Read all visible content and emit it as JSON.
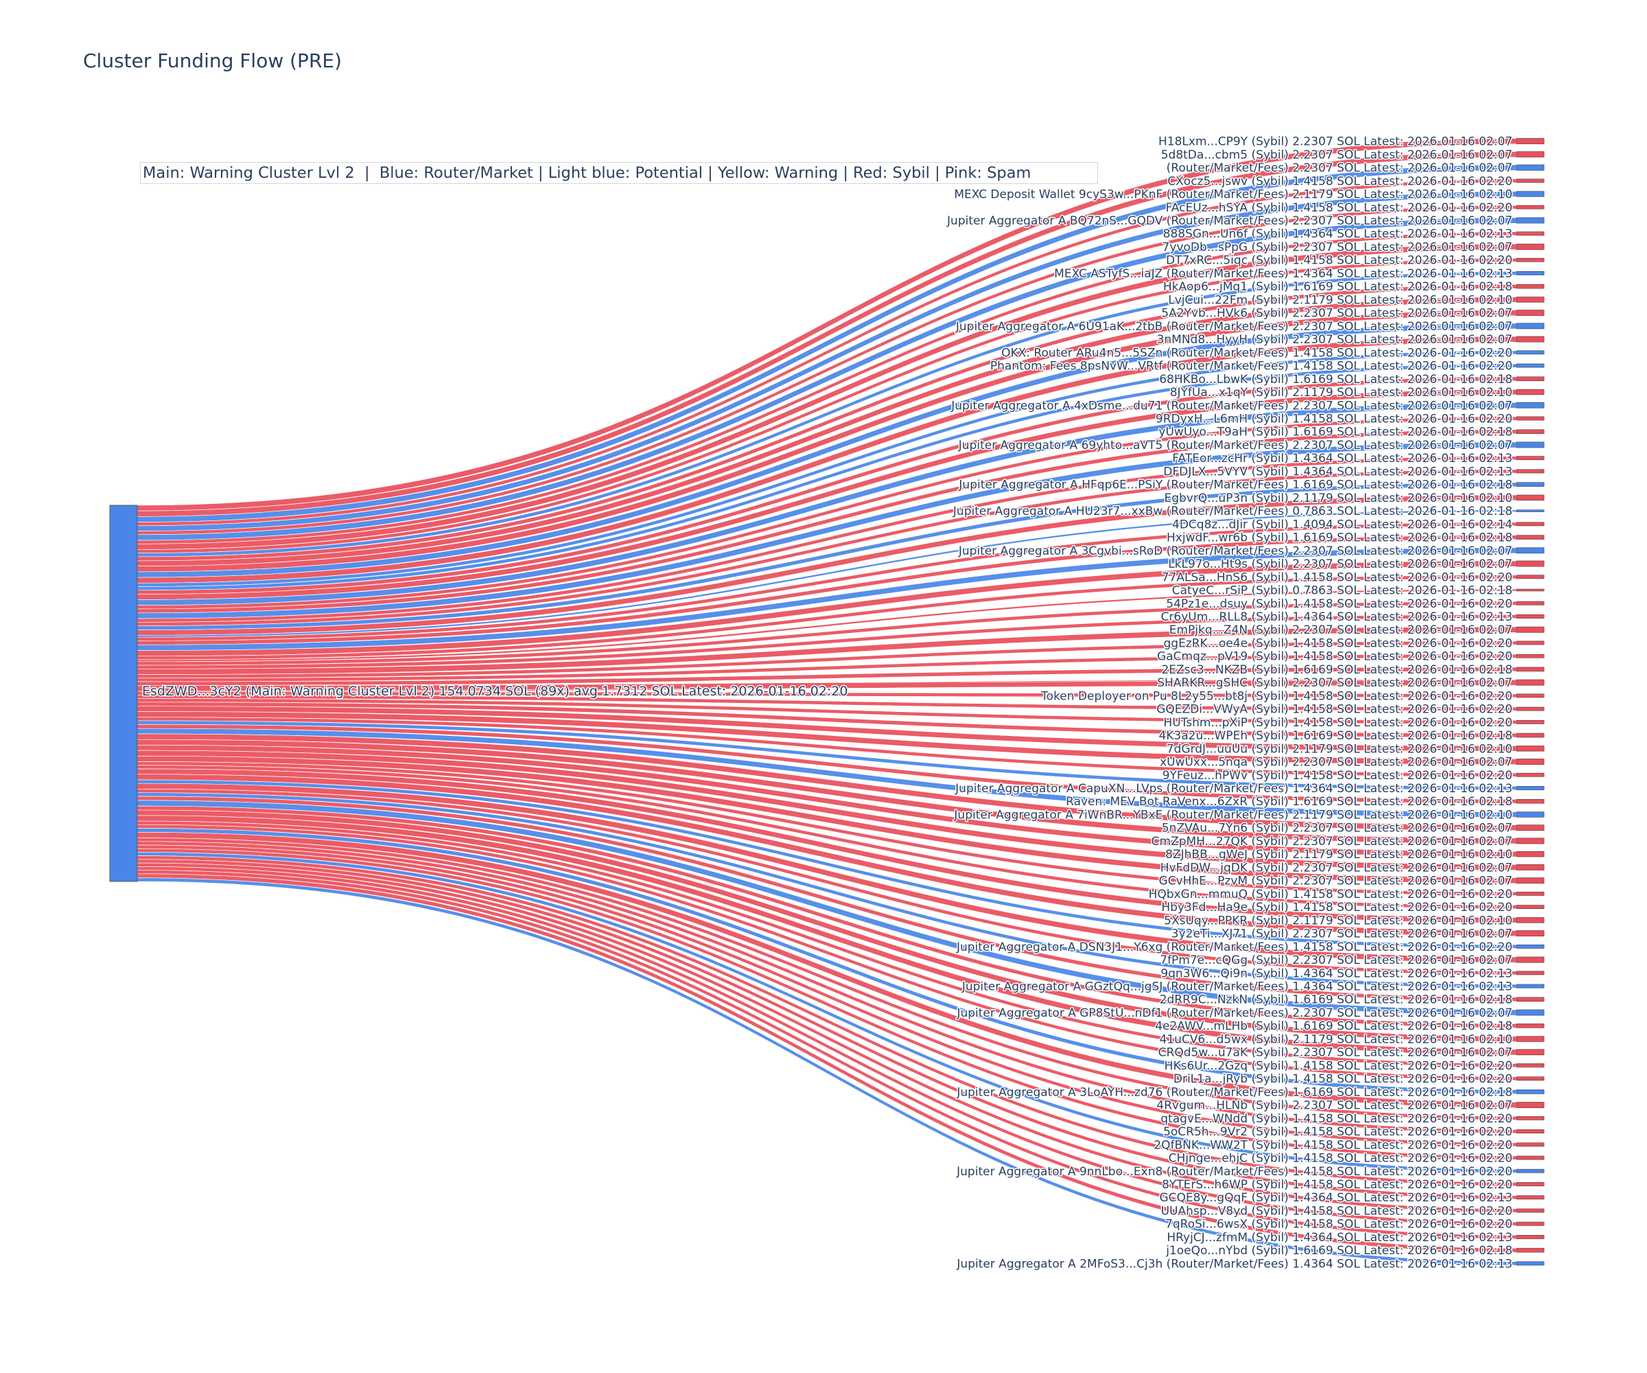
{
  "title": "Cluster Funding Flow (PRE)",
  "legend_text": "Main: Warning Cluster Lvl 2  |  Blue: Router/Market | Light blue: Potential | Yellow: Warning | Red: Sybil | Pink: Spam",
  "colors": {
    "main": "#4a86e8",
    "router": "#4a86e8",
    "sybil": "#e8505b",
    "text": "#2a3f5f"
  },
  "chart_data": {
    "type": "sankey",
    "source": {
      "label": "EsdZWD...3cY2 (Main: Warning Cluster Lvl 2) 154.0734 SOL (89x) avg 1.7312 SOL Latest: 2026-01-16 02:20",
      "total_sol": 154.0734,
      "count": 89
    },
    "targets": [
      {
        "label": "H18Lxm...CP9Y (Sybil) 2.2307 SOL Latest: 2026-01-16 02:07",
        "kind": "sybil",
        "value": 2.2307
      },
      {
        "label": "5d8tDa...cbm5 (Sybil) 2.2307 SOL Latest: 2026-01-16 02:07",
        "kind": "sybil",
        "value": 2.2307
      },
      {
        "label": "(Router/Market/Fees) 2.2307 SOL Latest: 2026-01-16 02:07",
        "kind": "router",
        "value": 2.2307
      },
      {
        "label": "CXocz5...jswv (Sybil) 1.4158 SOL Latest: 2026-01-16 02:20",
        "kind": "sybil",
        "value": 1.4158
      },
      {
        "label": "MEXC Deposit Wallet 9cyS3w...PKnF (Router/Market/Fees) 2.1179 SOL Latest: 2026-01-16 02:10",
        "kind": "router",
        "value": 2.1179
      },
      {
        "label": "FAcEUz...hSYA (Sybil) 1.4158 SOL Latest: 2026-01-16 02:20",
        "kind": "sybil",
        "value": 1.4158
      },
      {
        "label": "Jupiter Aggregator A BQ72nS...GQDV (Router/Market/Fees) 2.2307 SOL Latest: 2026-01-16 02:07",
        "kind": "router",
        "value": 2.2307
      },
      {
        "label": "888SGn...Un6f (Sybil) 1.4364 SOL Latest: 2026-01-16 02:13",
        "kind": "sybil",
        "value": 1.4364
      },
      {
        "label": "7yvoDb...sPpG (Sybil) 2.2307 SOL Latest: 2026-01-16 02:07",
        "kind": "sybil",
        "value": 2.2307
      },
      {
        "label": "DT7xRC...5iqc (Sybil) 1.4158 SOL Latest: 2026-01-16 02:20",
        "kind": "sybil",
        "value": 1.4158
      },
      {
        "label": "MEXC ASTyfS...iaJZ (Router/Market/Fees) 1.4364 SOL Latest: 2026-01-16 02:13",
        "kind": "router",
        "value": 1.4364
      },
      {
        "label": "HkAop6...jMq1 (Sybil) 1.6169 SOL Latest: 2026-01-16 02:18",
        "kind": "sybil",
        "value": 1.6169
      },
      {
        "label": "LvjCui...22Fm (Sybil) 2.1179 SOL Latest: 2026-01-16 02:10",
        "kind": "sybil",
        "value": 2.1179
      },
      {
        "label": "5A2Yvb...HVk6 (Sybil) 2.2307 SOL Latest: 2026-01-16 02:07",
        "kind": "sybil",
        "value": 2.2307
      },
      {
        "label": "Jupiter Aggregator A 6U91aK...2tbB (Router/Market/Fees) 2.2307 SOL Latest: 2026-01-16 02:07",
        "kind": "router",
        "value": 2.2307
      },
      {
        "label": "3nMNd8...HyyH (Sybil) 2.2307 SOL Latest: 2026-01-16 02:07",
        "kind": "sybil",
        "value": 2.2307
      },
      {
        "label": "OKX: Router ARu4n5...5SZn (Router/Market/Fees) 1.4158 SOL Latest: 2026-01-16 02:20",
        "kind": "router",
        "value": 1.4158
      },
      {
        "label": "Phantom: Fees 8psNvW...VRtf (Router/Market/Fees) 1.4158 SOL Latest: 2026-01-16 02:20",
        "kind": "router",
        "value": 1.4158
      },
      {
        "label": "68HKBo...LbwK (Sybil) 1.6169 SOL Latest: 2026-01-16 02:18",
        "kind": "sybil",
        "value": 1.6169
      },
      {
        "label": "8JYfUa...x1qY (Sybil) 2.1179 SOL Latest: 2026-01-16 02:10",
        "kind": "sybil",
        "value": 2.1179
      },
      {
        "label": "Jupiter Aggregator A 4xDsme...du71 (Router/Market/Fees) 2.2307 SOL Latest: 2026-01-16 02:07",
        "kind": "router",
        "value": 2.2307
      },
      {
        "label": "9RDyxH...L6mH (Sybil) 1.4158 SOL Latest: 2026-01-16 02:20",
        "kind": "sybil",
        "value": 1.4158
      },
      {
        "label": "yUwUyo...T9aH (Sybil) 1.6169 SOL Latest: 2026-01-16 02:18",
        "kind": "sybil",
        "value": 1.6169
      },
      {
        "label": "Jupiter Aggregator A 69yhto...aVT5 (Router/Market/Fees) 2.2307 SOL Latest: 2026-01-16 02:07",
        "kind": "router",
        "value": 2.2307
      },
      {
        "label": "FATEor...zcHr (Sybil) 1.4364 SOL Latest: 2026-01-16 02:13",
        "kind": "sybil",
        "value": 1.4364
      },
      {
        "label": "DFDJLX...5VYV (Sybil) 1.4364 SOL Latest: 2026-01-16 02:13",
        "kind": "sybil",
        "value": 1.4364
      },
      {
        "label": "Jupiter Aggregator A HFqp6E...PSiY (Router/Market/Fees) 1.6169 SOL Latest: 2026-01-16 02:18",
        "kind": "router",
        "value": 1.6169
      },
      {
        "label": "EgbvrQ...uP3n (Sybil) 2.1179 SOL Latest: 2026-01-16 02:10",
        "kind": "sybil",
        "value": 2.1179
      },
      {
        "label": "Jupiter Aggregator A HU23r7...xxBw (Router/Market/Fees) 0.7863 SOL Latest: 2026-01-16 02:18",
        "kind": "router",
        "value": 0.7863
      },
      {
        "label": "4DCq8z...dJir (Sybil) 1.4094 SOL Latest: 2026-01-16 02:14",
        "kind": "sybil",
        "value": 1.4094
      },
      {
        "label": "HxjwdF...wr6b (Sybil) 1.6169 SOL Latest: 2026-01-16 02:18",
        "kind": "sybil",
        "value": 1.6169
      },
      {
        "label": "Jupiter Aggregator A 3Cgvbi...sRoD (Router/Market/Fees) 2.2307 SOL Latest: 2026-01-16 02:07",
        "kind": "router",
        "value": 2.2307
      },
      {
        "label": "LkL97o...Ht9s (Sybil) 2.2307 SOL Latest: 2026-01-16 02:07",
        "kind": "sybil",
        "value": 2.2307
      },
      {
        "label": "77ALSa...HnS6 (Sybil) 1.4158 SOL Latest: 2026-01-16 02:20",
        "kind": "sybil",
        "value": 1.4158
      },
      {
        "label": "CatyeC...rSiP (Sybil) 0.7863 SOL Latest: 2026-01-16 02:18",
        "kind": "sybil",
        "value": 0.7863
      },
      {
        "label": "54Pz1e...dsuy (Sybil) 1.4158 SOL Latest: 2026-01-16 02:20",
        "kind": "sybil",
        "value": 1.4158
      },
      {
        "label": "Cr6yUm...RLL8 (Sybil) 1.4364 SOL Latest: 2026-01-16 02:13",
        "kind": "sybil",
        "value": 1.4364
      },
      {
        "label": "EmPjkq...Z4N (Sybil) 2.2307 SOL Latest: 2026-01-16 02:07",
        "kind": "sybil",
        "value": 2.2307
      },
      {
        "label": "ggEzRK...oe4e (Sybil) 1.4158 SOL Latest: 2026-01-16 02:20",
        "kind": "sybil",
        "value": 1.4158
      },
      {
        "label": "GaCmqz...pV19 (Sybil) 1.4158 SOL Latest: 2026-01-16 02:20",
        "kind": "sybil",
        "value": 1.4158
      },
      {
        "label": "2EZsc3...NKZB (Sybil) 1.6169 SOL Latest: 2026-01-16 02:18",
        "kind": "sybil",
        "value": 1.6169
      },
      {
        "label": "SHARKR...gSHC (Sybil) 2.2307 SOL Latest: 2026-01-16 02:07",
        "kind": "sybil",
        "value": 2.2307
      },
      {
        "label": "Token Deployer on Pu 8L2y55...bt8j (Sybil) 1.4158 SOL Latest: 2026-01-16 02:20",
        "kind": "sybil",
        "value": 1.4158
      },
      {
        "label": "GQEZDi...VWyA (Sybil) 1.4158 SOL Latest: 2026-01-16 02:20",
        "kind": "sybil",
        "value": 1.4158
      },
      {
        "label": "HUTshm...pXiP (Sybil) 1.4158 SOL Latest: 2026-01-16 02:20",
        "kind": "sybil",
        "value": 1.4158
      },
      {
        "label": "4K3a2u...WPEh (Sybil) 1.6169 SOL Latest: 2026-01-16 02:18",
        "kind": "sybil",
        "value": 1.6169
      },
      {
        "label": "7dGrdJ...uuUu (Sybil) 2.1179 SOL Latest: 2026-01-16 02:10",
        "kind": "sybil",
        "value": 2.1179
      },
      {
        "label": "xUwUxx...5nqa (Sybil) 2.2307 SOL Latest: 2026-01-16 02:07",
        "kind": "sybil",
        "value": 2.2307
      },
      {
        "label": "9YFeuz...hPWv (Sybil) 1.4158 SOL Latest: 2026-01-16 02:20",
        "kind": "sybil",
        "value": 1.4158
      },
      {
        "label": "Jupiter Aggregator A CapuXN...LVps (Router/Market/Fees) 1.4364 SOL Latest: 2026-01-16 02:13",
        "kind": "router",
        "value": 1.4364
      },
      {
        "label": "Raven: MEV Bot RaVenx...6ZxR (Sybil) 1.6169 SOL Latest: 2026-01-16 02:18",
        "kind": "sybil",
        "value": 1.6169
      },
      {
        "label": "Jupiter Aggregator A 7iWnBR...YBxE (Router/Market/Fees) 2.1179 SOL Latest: 2026-01-16 02:10",
        "kind": "router",
        "value": 2.1179
      },
      {
        "label": "5nZVAu...7Yn6 (Sybil) 2.2307 SOL Latest: 2026-01-16 02:07",
        "kind": "sybil",
        "value": 2.2307
      },
      {
        "label": "CmZpMH...27QK (Sybil) 2.2307 SOL Latest: 2026-01-16 02:07",
        "kind": "sybil",
        "value": 2.2307
      },
      {
        "label": "8ZJhBB...gWeJ (Sybil) 2.1179 SOL Latest: 2026-01-16 02:10",
        "kind": "sybil",
        "value": 2.1179
      },
      {
        "label": "HvFdDW...jqDK (Sybil) 2.2307 SOL Latest: 2026-01-16 02:07",
        "kind": "sybil",
        "value": 2.2307
      },
      {
        "label": "GCvHhE...PzvM (Sybil) 2.2307 SOL Latest: 2026-01-16 02:07",
        "kind": "sybil",
        "value": 2.2307
      },
      {
        "label": "HQbxGn...mmuQ (Sybil) 1.4158 SOL Latest: 2026-01-16 02:20",
        "kind": "sybil",
        "value": 1.4158
      },
      {
        "label": "Hby3Fd...Ha9e (Sybil) 1.4158 SOL Latest: 2026-01-16 02:20",
        "kind": "sybil",
        "value": 1.4158
      },
      {
        "label": "5XsUqy...PPKR (Sybil) 2.1179 SOL Latest: 2026-01-16 02:10",
        "kind": "sybil",
        "value": 2.1179
      },
      {
        "label": "3y2eTi...XJ71 (Sybil) 2.2307 SOL Latest: 2026-01-16 02:07",
        "kind": "sybil",
        "value": 2.2307
      },
      {
        "label": "Jupiter Aggregator A DSN3J1...Y6xg (Router/Market/Fees) 1.4158 SOL Latest: 2026-01-16 02:20",
        "kind": "router",
        "value": 1.4158
      },
      {
        "label": "7fPm7e...cQGg (Sybil) 2.2307 SOL Latest: 2026-01-16 02:07",
        "kind": "sybil",
        "value": 2.2307
      },
      {
        "label": "9qn3W6...Qi9n (Sybil) 1.4364 SOL Latest: 2026-01-16 02:13",
        "kind": "sybil",
        "value": 1.4364
      },
      {
        "label": "Jupiter Aggregator A GGztQq...jgSJ (Router/Market/Fees) 1.4364 SOL Latest: 2026-01-16 02:13",
        "kind": "router",
        "value": 1.4364
      },
      {
        "label": "2dRR9C...NzkN (Sybil) 1.6169 SOL Latest: 2026-01-16 02:18",
        "kind": "sybil",
        "value": 1.6169
      },
      {
        "label": "Jupiter Aggregator A GP8StU...nDf1 (Router/Market/Fees) 2.2307 SOL Latest: 2026-01-16 02:07",
        "kind": "router",
        "value": 2.2307
      },
      {
        "label": "4e2AWV...mLHb (Sybil) 1.6169 SOL Latest: 2026-01-16 02:18",
        "kind": "sybil",
        "value": 1.6169
      },
      {
        "label": "41uCV6...d5wx (Sybil) 2.1179 SOL Latest: 2026-01-16 02:10",
        "kind": "sybil",
        "value": 2.1179
      },
      {
        "label": "CRQd5w...u7aK (Sybil) 2.2307 SOL Latest: 2026-01-16 02:07",
        "kind": "sybil",
        "value": 2.2307
      },
      {
        "label": "HKs6Ur...2Gzq (Sybil) 1.4158 SOL Latest: 2026-01-16 02:20",
        "kind": "sybil",
        "value": 1.4158
      },
      {
        "label": "DriL1a...jRyb (Sybil) 1.4158 SOL Latest: 2026-01-16 02:20",
        "kind": "sybil",
        "value": 1.4158
      },
      {
        "label": "Jupiter Aggregator A 3LoAYH...zd76 (Router/Market/Fees) 1.6169 SOL Latest: 2026-01-16 02:18",
        "kind": "router",
        "value": 1.6169
      },
      {
        "label": "4Rvgum...HLNb (Sybil) 2.2307 SOL Latest: 2026-01-16 02:07",
        "kind": "sybil",
        "value": 2.2307
      },
      {
        "label": "qtagvE...WNdd (Sybil) 1.4158 SOL Latest: 2026-01-16 02:20",
        "kind": "sybil",
        "value": 1.4158
      },
      {
        "label": "5oCR5h...9Vr2 (Sybil) 1.4158 SOL Latest: 2026-01-16 02:20",
        "kind": "sybil",
        "value": 1.4158
      },
      {
        "label": "2QfBNK...WW2T (Sybil) 1.4158 SOL Latest: 2026-01-16 02:20",
        "kind": "sybil",
        "value": 1.4158
      },
      {
        "label": "CHjnge...ehjC (Sybil) 1.4158 SOL Latest: 2026-01-16 02:20",
        "kind": "sybil",
        "value": 1.4158
      },
      {
        "label": "Jupiter Aggregator A 9nnLbo...Exn8 (Router/Market/Fees) 1.4158 SOL Latest: 2026-01-16 02:20",
        "kind": "router",
        "value": 1.4158
      },
      {
        "label": "8YTErS...h6WP (Sybil) 1.4158 SOL Latest: 2026-01-16 02:20",
        "kind": "sybil",
        "value": 1.4158
      },
      {
        "label": "GCQE8y...gQqF (Sybil) 1.4364 SOL Latest: 2026-01-16 02:13",
        "kind": "sybil",
        "value": 1.4364
      },
      {
        "label": "UUAhsp...V8yd (Sybil) 1.4158 SOL Latest: 2026-01-16 02:20",
        "kind": "sybil",
        "value": 1.4158
      },
      {
        "label": "7qRoSi...6wsX (Sybil) 1.4158 SOL Latest: 2026-01-16 02:20",
        "kind": "sybil",
        "value": 1.4158
      },
      {
        "label": "HRyjCJ...zfmM (Sybil) 1.4364 SOL Latest: 2026-01-16 02:13",
        "kind": "sybil",
        "value": 1.4364
      },
      {
        "label": "j1oeQo...nYbd (Sybil) 1.6169 SOL Latest: 2026-01-16 02:18",
        "kind": "sybil",
        "value": 1.6169
      },
      {
        "label": "Jupiter Aggregator A 2MFoS3...Cj3h (Router/Market/Fees) 1.4364 SOL Latest: 2026-01-16 02:13",
        "kind": "router",
        "value": 1.4364
      }
    ]
  }
}
